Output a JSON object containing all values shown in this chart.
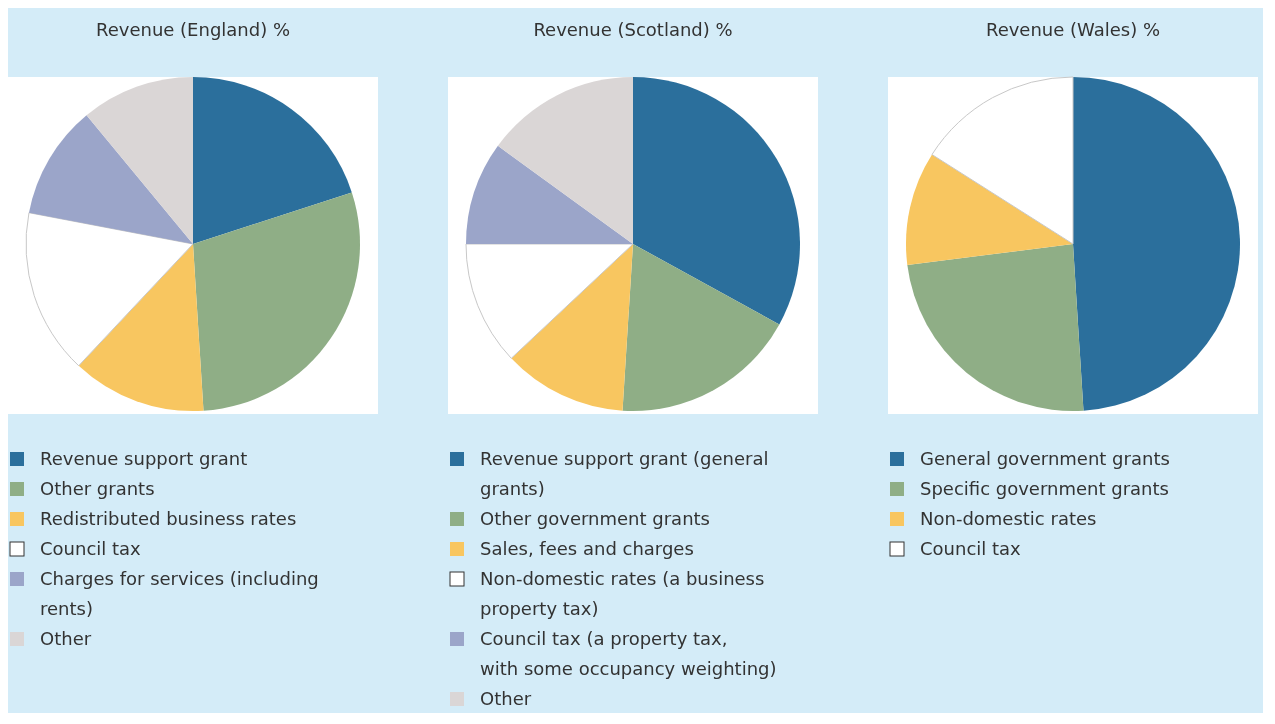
{
  "chart_data": [
    {
      "type": "pie",
      "title": "Revenue (England) %",
      "legend": "bottom",
      "categories": [
        "Revenue support grant",
        "Other grants",
        "Redistributed business rates",
        "Council tax",
        "Charges for services (including rents)",
        "Other"
      ],
      "values": [
        20,
        29,
        13,
        16,
        11,
        11
      ],
      "colors": [
        "#2b6f9c",
        "#8fae86",
        "#f8c660",
        "#ffffff",
        "#9ba5c9",
        "#dad6d6"
      ]
    },
    {
      "type": "pie",
      "title": "Revenue (Scotland) %",
      "legend": "bottom",
      "categories": [
        "Revenue support grant (general grants)",
        "Other government grants",
        "Sales, fees and charges",
        "Non-domestic rates (a business property tax)",
        "Council tax (a property tax, with some occupancy weighting)",
        "Other"
      ],
      "values": [
        33,
        18,
        12,
        12,
        10,
        15
      ],
      "colors": [
        "#2b6f9c",
        "#8fae86",
        "#f8c660",
        "#ffffff",
        "#9ba5c9",
        "#dad6d6"
      ]
    },
    {
      "type": "pie",
      "title": "Revenue (Wales) %",
      "legend": "bottom",
      "categories": [
        "General government grants",
        "Specific government grants",
        "Non-domestic rates",
        "Council tax"
      ],
      "values": [
        49,
        24,
        11,
        16
      ],
      "colors": [
        "#2b6f9c",
        "#8fae86",
        "#f8c660",
        "#ffffff"
      ]
    }
  ]
}
